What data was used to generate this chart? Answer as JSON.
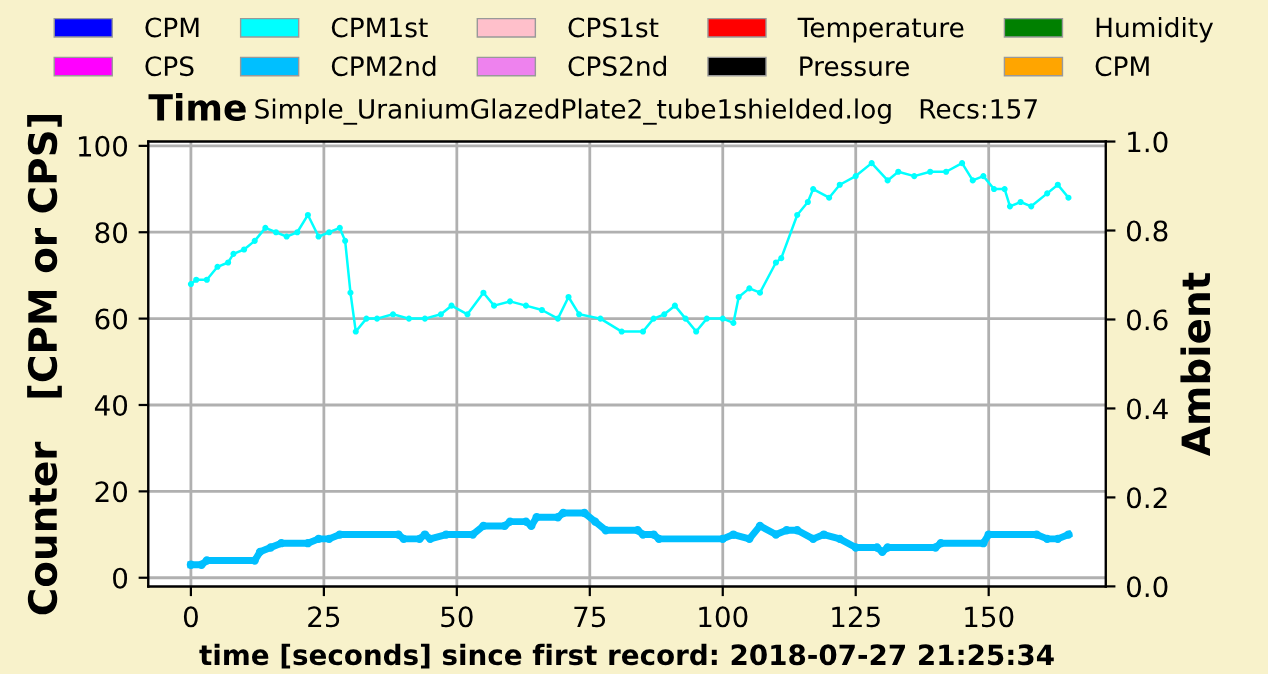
{
  "chart_data": {
    "type": "line",
    "title": "Time",
    "subtitle": "Simple_UraniumGlazedPlate2_tube1shielded.log   Recs:157",
    "xlabel": "time [seconds] since first record: 2018-07-27 21:25:34",
    "ylabel": "Counter   [CPM or CPS]",
    "y2label": "Ambient",
    "xlim": [
      -8,
      172
    ],
    "xticks": [
      0,
      25,
      50,
      75,
      100,
      125,
      150
    ],
    "ylim": [
      -2,
      101
    ],
    "yticks": [
      0,
      20,
      40,
      60,
      80,
      100
    ],
    "y2lim": [
      0,
      1
    ],
    "y2ticks": [
      {
        "value": 0,
        "label": "0.0"
      },
      {
        "value": 0.2,
        "label": "0.2"
      },
      {
        "value": 0.4,
        "label": "0.4"
      },
      {
        "value": 0.6,
        "label": "0.6"
      },
      {
        "value": 0.8,
        "label": "0.8"
      },
      {
        "value": 1,
        "label": "1.0"
      }
    ],
    "grid": true,
    "legend": "top",
    "marker": "circle",
    "series": [
      {
        "name": "CPM",
        "color": "#0000ff"
      },
      {
        "name": "CPS",
        "color": "#ff00ff"
      },
      {
        "name": "CPM1st",
        "color": "#00ffff",
        "x": [
          0,
          1,
          3,
          5,
          7,
          8,
          10,
          12,
          14,
          16,
          18,
          20,
          22,
          24,
          26,
          28,
          29,
          30,
          31,
          33,
          35,
          38,
          41,
          44,
          47,
          49,
          52,
          55,
          57,
          60,
          63,
          66,
          69,
          71,
          73,
          77,
          81,
          85,
          87,
          89,
          91,
          93,
          95,
          97,
          100,
          102,
          103,
          105,
          107,
          110,
          111,
          114,
          116,
          117,
          120,
          122,
          125,
          128,
          131,
          133,
          136,
          139,
          142,
          145,
          147,
          149,
          151,
          153,
          154,
          156,
          158,
          161,
          163,
          165
        ],
        "values": [
          68,
          69,
          69,
          72,
          73,
          75,
          76,
          78,
          81,
          80,
          79,
          80,
          84,
          79,
          80,
          81,
          78,
          66,
          57,
          60,
          60,
          61,
          60,
          60,
          61,
          63,
          61,
          66,
          63,
          64,
          63,
          62,
          60,
          65,
          61,
          60,
          57,
          57,
          60,
          61,
          63,
          60,
          57,
          60,
          60,
          59,
          65,
          67,
          66,
          73,
          74,
          84,
          87,
          90,
          88,
          91,
          93,
          96,
          92,
          94,
          93,
          94,
          94,
          96,
          92,
          93,
          90,
          90,
          86,
          87,
          86,
          89,
          91,
          88
        ]
      },
      {
        "name": "CPM2nd",
        "color": "#00bfff",
        "x": [
          0,
          2,
          3,
          12,
          13,
          15,
          17,
          22,
          24,
          26,
          28,
          39,
          40,
          43,
          44,
          45,
          48,
          53,
          55,
          59,
          60,
          63,
          64,
          65,
          69,
          70,
          74,
          76,
          78,
          84,
          85,
          87,
          88,
          100,
          102,
          105,
          107,
          110,
          112,
          114,
          117,
          119,
          122,
          125,
          129,
          130,
          131,
          140,
          141,
          149,
          150,
          159,
          161,
          163,
          165
        ],
        "values": [
          3,
          3,
          4,
          4,
          6,
          7,
          8,
          8,
          9,
          9,
          10,
          10,
          9,
          9,
          10,
          9,
          10,
          10,
          12,
          12,
          13,
          13,
          12,
          14,
          14,
          15,
          15,
          13,
          11,
          11,
          10,
          10,
          9,
          9,
          10,
          9,
          12,
          10,
          11,
          11,
          9,
          10,
          9,
          7,
          7,
          6,
          7,
          7,
          8,
          8,
          10,
          10,
          9,
          9,
          10
        ]
      },
      {
        "name": "CPS1st",
        "color": "#ffc0cb"
      },
      {
        "name": "CPS2nd",
        "color": "#ee82ee"
      },
      {
        "name": "Temperature",
        "color": "#ff0000"
      },
      {
        "name": "Pressure",
        "color": "#000000"
      },
      {
        "name": "Humidity",
        "color": "#008000"
      },
      {
        "name": "CPM",
        "color": "#ffa500"
      }
    ]
  }
}
